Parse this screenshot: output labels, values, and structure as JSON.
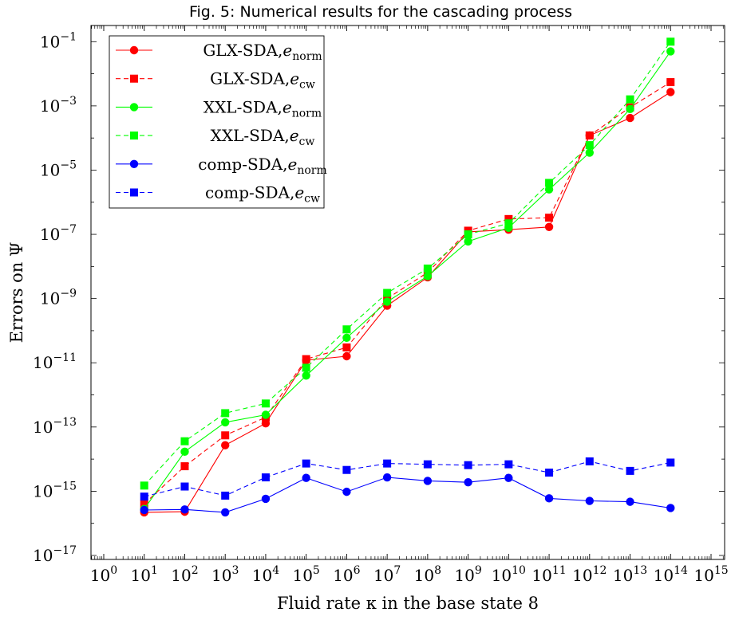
{
  "chart_data": {
    "type": "line",
    "title": "Fig. 5: Numerical results for the cascading process",
    "xlabel": "Fluid rate κ in the base state 8",
    "ylabel": "Errors on Ψ",
    "xscale": "log",
    "yscale": "log",
    "xlim": [
      1,
      1000000000000000.0
    ],
    "ylim": [
      1e-17,
      1
    ],
    "x_ticks": [
      {
        "exp": "0"
      },
      {
        "exp": "1"
      },
      {
        "exp": "2"
      },
      {
        "exp": "3"
      },
      {
        "exp": "4"
      },
      {
        "exp": "5"
      },
      {
        "exp": "6"
      },
      {
        "exp": "7"
      },
      {
        "exp": "8"
      },
      {
        "exp": "9"
      },
      {
        "exp": "10"
      },
      {
        "exp": "11"
      },
      {
        "exp": "12"
      },
      {
        "exp": "13"
      },
      {
        "exp": "14"
      },
      {
        "exp": "15"
      }
    ],
    "y_ticks": [
      {
        "value": 1e-17,
        "exp": "−17"
      },
      {
        "value": 1e-15,
        "exp": "−15"
      },
      {
        "value": 1e-13,
        "exp": "−13"
      },
      {
        "value": 1e-11,
        "exp": "−11"
      },
      {
        "value": 1e-09,
        "exp": "−9"
      },
      {
        "value": 1e-07,
        "exp": "−7"
      },
      {
        "value": 1e-05,
        "exp": "−5"
      },
      {
        "value": 0.001,
        "exp": "−3"
      },
      {
        "value": 0.1,
        "exp": "−1"
      }
    ],
    "x": [
      10.0,
      100.0,
      1000.0,
      10000.0,
      100000.0,
      1000000.0,
      10000000.0,
      100000000.0,
      1000000000.0,
      10000000000.0,
      100000000000.0,
      1000000000000.0,
      10000000000000.0,
      100000000000000.0
    ],
    "legend_position": "top-left",
    "grid": false,
    "series": [
      {
        "name": "GLX-SDA,",
        "sub_symbol": "e",
        "sub": "norm",
        "color": "#ff0000",
        "dash": "solid",
        "marker": "circle",
        "values": [
          2.2e-16,
          2.3e-16,
          2.7e-14,
          1.3e-13,
          1.2e-11,
          1.6e-11,
          6e-10,
          4.6e-09,
          1.2e-07,
          1.4e-07,
          1.7e-07,
          0.00012,
          0.00042,
          0.0027
        ]
      },
      {
        "name": "GLX-SDA,",
        "sub_symbol": "e",
        "sub": "cw",
        "color": "#ff0000",
        "dash": "dashed",
        "marker": "square",
        "values": [
          4e-16,
          6e-15,
          5.5e-14,
          2e-13,
          1.3e-11,
          3e-11,
          1e-09,
          6.5e-09,
          1.3e-07,
          3e-07,
          3.3e-07,
          0.00012,
          0.0009,
          0.0055
        ]
      },
      {
        "name": "XXL-SDA,",
        "sub_symbol": "e",
        "sub": "norm",
        "color": "#00ff00",
        "dash": "solid",
        "marker": "circle",
        "values": [
          2.8e-16,
          1.7e-14,
          1.4e-13,
          2.4e-13,
          4e-12,
          6e-11,
          8e-10,
          5e-09,
          6e-08,
          1.6e-07,
          2.5e-06,
          3.5e-05,
          0.0008,
          0.05
        ]
      },
      {
        "name": "XXL-SDA,",
        "sub_symbol": "e",
        "sub": "cw",
        "color": "#00ff00",
        "dash": "dashed",
        "marker": "square",
        "values": [
          1.5e-15,
          3.6e-14,
          2.7e-13,
          5.4e-13,
          7e-12,
          1.1e-10,
          1.5e-09,
          8.6e-09,
          1e-07,
          2.2e-07,
          4e-06,
          6e-05,
          0.0016,
          0.1
        ]
      },
      {
        "name": "comp-SDA,",
        "sub_symbol": "e",
        "sub": "norm",
        "color": "#0000ff",
        "dash": "solid",
        "marker": "circle",
        "values": [
          2.6e-16,
          2.7e-16,
          2.2e-16,
          5.8e-16,
          2.6e-15,
          9.6e-16,
          2.7e-15,
          2.1e-15,
          1.9e-15,
          2.6e-15,
          6e-16,
          5e-16,
          4.7e-16,
          3e-16
        ]
      },
      {
        "name": "comp-SDA,",
        "sub_symbol": "e",
        "sub": "cw",
        "color": "#0000ff",
        "dash": "dashed",
        "marker": "square",
        "values": [
          6.8e-16,
          1.4e-15,
          7.3e-16,
          2.7e-15,
          7.3e-15,
          4.6e-15,
          7.3e-15,
          6.9e-15,
          6.5e-15,
          6.9e-15,
          3.8e-15,
          8.5e-15,
          4.3e-15,
          7.8e-15
        ]
      }
    ]
  }
}
